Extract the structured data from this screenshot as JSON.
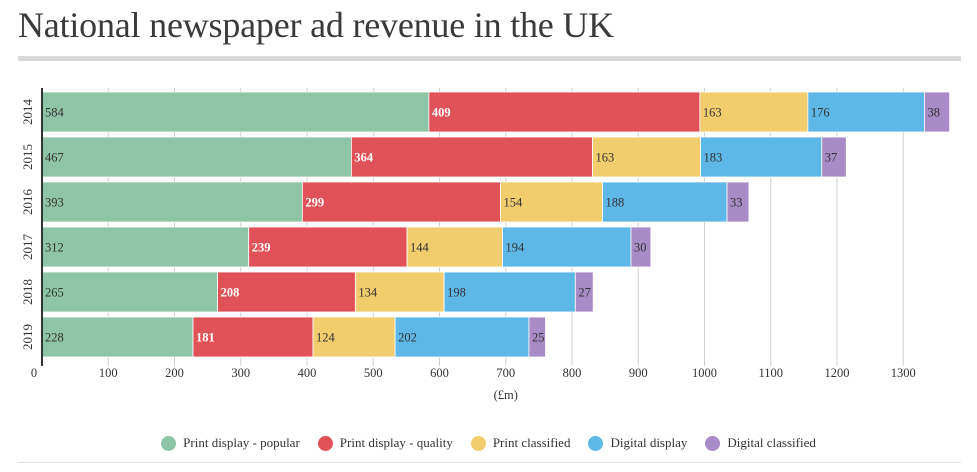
{
  "title": "National newspaper ad revenue in the UK",
  "chart_data": {
    "type": "bar",
    "orientation": "horizontal",
    "stacked": true,
    "categories": [
      "2014",
      "2015",
      "2016",
      "2017",
      "2018",
      "2019"
    ],
    "xlabel": "(£m)",
    "xlim": [
      0,
      1400
    ],
    "xticks": [
      0,
      100,
      200,
      300,
      400,
      500,
      600,
      700,
      800,
      900,
      1000,
      1100,
      1200,
      1300
    ],
    "grid": true,
    "legend_position": "bottom",
    "series": [
      {
        "name": "Print display - popular",
        "color": "#8fc5a7",
        "label_color": "#333333",
        "label_bold": false,
        "values": [
          584,
          467,
          393,
          312,
          265,
          228
        ]
      },
      {
        "name": "Print display - quality",
        "color": "#e05258",
        "label_color": "#ffffff",
        "label_bold": true,
        "values": [
          409,
          364,
          299,
          239,
          208,
          181
        ]
      },
      {
        "name": "Print classified",
        "color": "#f2cd6e",
        "label_color": "#333333",
        "label_bold": false,
        "values": [
          163,
          163,
          154,
          144,
          134,
          124
        ]
      },
      {
        "name": "Digital display",
        "color": "#5db8e8",
        "label_color": "#333333",
        "label_bold": false,
        "values": [
          176,
          183,
          188,
          194,
          198,
          202
        ]
      },
      {
        "name": "Digital classified",
        "color": "#a98bc8",
        "label_color": "#333333",
        "label_bold": false,
        "values": [
          38,
          37,
          33,
          30,
          27,
          25
        ]
      }
    ]
  }
}
